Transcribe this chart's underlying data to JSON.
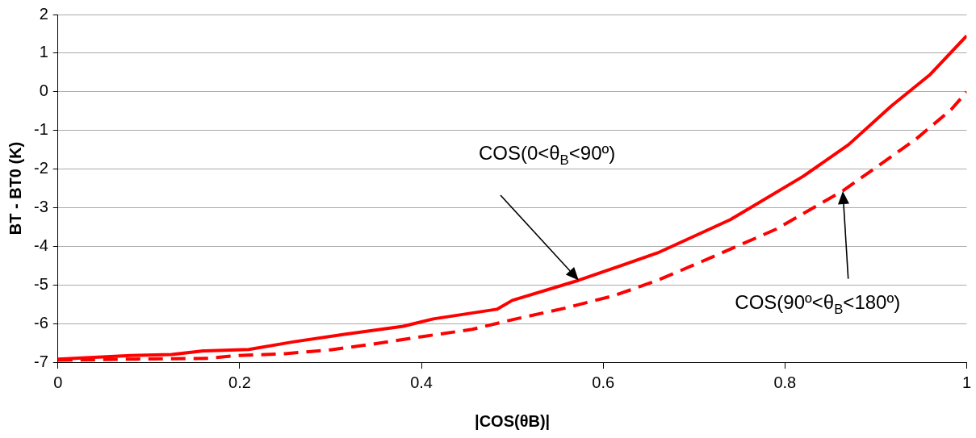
{
  "chart_data": {
    "type": "line",
    "xlabel": "|COS(θB)|",
    "ylabel": "BT - BT0 (K)",
    "xlim": [
      0,
      1
    ],
    "xticks": [
      0,
      0.2,
      0.4,
      0.6,
      0.8,
      1
    ],
    "ylim": [
      -7,
      2
    ],
    "yticks": [
      -7,
      -6,
      -5,
      -4,
      -3,
      -2,
      -1,
      0,
      1,
      2
    ],
    "grid": "y",
    "legend": false,
    "marker": "none",
    "series": [
      {
        "color": "#ff0000",
        "line_style": "solid",
        "x": [
          0,
          0.08,
          0.125,
          0.16,
          0.21,
          0.26,
          0.315,
          0.38,
          0.413,
          0.483,
          0.5,
          0.573,
          0.66,
          0.74,
          0.82,
          0.87,
          0.917,
          0.96,
          1
        ],
        "values": [
          -6.92,
          -6.83,
          -6.8,
          -6.71,
          -6.67,
          -6.47,
          -6.28,
          -6.07,
          -5.88,
          -5.63,
          -5.4,
          -4.88,
          -4.17,
          -3.31,
          -2.19,
          -1.37,
          -0.37,
          0.45,
          1.45
        ]
      },
      {
        "color": "#ff0000",
        "line_style": "dashed",
        "x": [
          0,
          0.085,
          0.164,
          0.196,
          0.25,
          0.3,
          0.35,
          0.403,
          0.456,
          0.5,
          0.56,
          0.613,
          0.66,
          0.717,
          0.79,
          0.864,
          0.944,
          0.983,
          1
        ],
        "values": [
          -6.95,
          -6.92,
          -6.9,
          -6.83,
          -6.78,
          -6.68,
          -6.52,
          -6.33,
          -6.15,
          -5.9,
          -5.59,
          -5.27,
          -4.88,
          -4.31,
          -3.56,
          -2.56,
          -1.23,
          -0.46,
          0
        ]
      }
    ],
    "annotations": [
      "COS(0<θ$_{B}$<90º)",
      "COS(90º<θ$_{B}$<180º)"
    ]
  }
}
